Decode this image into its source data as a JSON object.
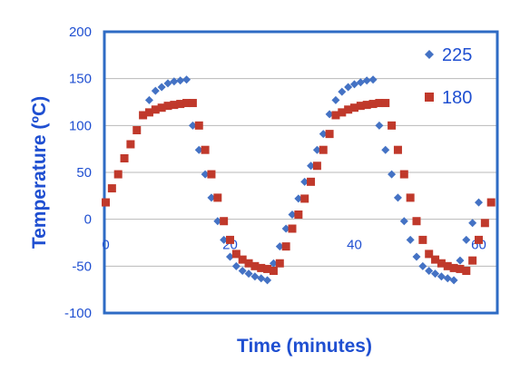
{
  "chart_data": {
    "type": "scatter",
    "title": "",
    "xlabel": "Time (minutes)",
    "ylabel": "Temperature (ºC)",
    "xlim": [
      0,
      63
    ],
    "ylim": [
      -100,
      200
    ],
    "x_ticks": [
      0,
      20,
      40,
      60
    ],
    "y_ticks": [
      -100,
      -50,
      0,
      50,
      100,
      150,
      200
    ],
    "x_tick_labels": [
      "0",
      "20",
      "40",
      "60"
    ],
    "y_tick_labels": [
      "-100",
      "-50",
      "0",
      "50",
      "100",
      "150",
      "200"
    ],
    "grid": "horizontal",
    "legend_position": "top-right",
    "colors": {
      "axis_text": "#1f4fd1",
      "frame": "#2e6bc4",
      "gridline": "#b9b9b9"
    },
    "series": [
      {
        "name": "225",
        "marker": "diamond",
        "color": "#4472c4",
        "points": [
          [
            0,
            18
          ],
          [
            1,
            33
          ],
          [
            2,
            48
          ],
          [
            3,
            65
          ],
          [
            4,
            80
          ],
          [
            5,
            95
          ],
          [
            6,
            111
          ],
          [
            7,
            127
          ],
          [
            8,
            137
          ],
          [
            9,
            141
          ],
          [
            10,
            145
          ],
          [
            11,
            147
          ],
          [
            12,
            148
          ],
          [
            13,
            149
          ],
          [
            14,
            100
          ],
          [
            15,
            74
          ],
          [
            16,
            48
          ],
          [
            17,
            23
          ],
          [
            18,
            -2
          ],
          [
            19,
            -22
          ],
          [
            20,
            -40
          ],
          [
            21,
            -50
          ],
          [
            22,
            -55
          ],
          [
            23,
            -58
          ],
          [
            24,
            -61
          ],
          [
            25,
            -63
          ],
          [
            26,
            -65
          ],
          [
            27,
            -47
          ],
          [
            28,
            -29
          ],
          [
            29,
            -10
          ],
          [
            30,
            5
          ],
          [
            31,
            22
          ],
          [
            32,
            40
          ],
          [
            33,
            57
          ],
          [
            34,
            74
          ],
          [
            35,
            91
          ],
          [
            36,
            112
          ],
          [
            37,
            127
          ],
          [
            38,
            136
          ],
          [
            39,
            141
          ],
          [
            40,
            144
          ],
          [
            41,
            146
          ],
          [
            42,
            148
          ],
          [
            43,
            149
          ],
          [
            44,
            100
          ],
          [
            45,
            74
          ],
          [
            46,
            48
          ],
          [
            47,
            23
          ],
          [
            48,
            -2
          ],
          [
            49,
            -22
          ],
          [
            50,
            -40
          ],
          [
            51,
            -50
          ],
          [
            52,
            -55
          ],
          [
            53,
            -58
          ],
          [
            54,
            -61
          ],
          [
            55,
            -63
          ],
          [
            56,
            -65
          ],
          [
            57,
            -44
          ],
          [
            58,
            -22
          ],
          [
            59,
            -4
          ],
          [
            60,
            18
          ]
        ]
      },
      {
        "name": "180",
        "marker": "square",
        "color": "#c0392b",
        "points": [
          [
            0,
            18
          ],
          [
            1,
            33
          ],
          [
            2,
            48
          ],
          [
            3,
            65
          ],
          [
            4,
            80
          ],
          [
            5,
            95
          ],
          [
            6,
            111
          ],
          [
            7,
            114
          ],
          [
            8,
            117
          ],
          [
            9,
            119
          ],
          [
            10,
            121
          ],
          [
            11,
            122
          ],
          [
            12,
            123
          ],
          [
            13,
            124
          ],
          [
            14,
            124
          ],
          [
            15,
            100
          ],
          [
            16,
            74
          ],
          [
            17,
            48
          ],
          [
            18,
            23
          ],
          [
            19,
            -2
          ],
          [
            20,
            -22
          ],
          [
            21,
            -37
          ],
          [
            22,
            -43
          ],
          [
            23,
            -47
          ],
          [
            24,
            -50
          ],
          [
            25,
            -52
          ],
          [
            26,
            -53
          ],
          [
            27,
            -55
          ],
          [
            28,
            -47
          ],
          [
            29,
            -29
          ],
          [
            30,
            -10
          ],
          [
            31,
            5
          ],
          [
            32,
            22
          ],
          [
            33,
            40
          ],
          [
            34,
            57
          ],
          [
            35,
            74
          ],
          [
            36,
            91
          ],
          [
            37,
            111
          ],
          [
            38,
            114
          ],
          [
            39,
            117
          ],
          [
            40,
            119
          ],
          [
            41,
            121
          ],
          [
            42,
            122
          ],
          [
            43,
            123
          ],
          [
            44,
            124
          ],
          [
            45,
            124
          ],
          [
            46,
            100
          ],
          [
            47,
            74
          ],
          [
            48,
            48
          ],
          [
            49,
            23
          ],
          [
            50,
            -2
          ],
          [
            51,
            -22
          ],
          [
            52,
            -37
          ],
          [
            53,
            -43
          ],
          [
            54,
            -47
          ],
          [
            55,
            -50
          ],
          [
            56,
            -52
          ],
          [
            57,
            -53
          ],
          [
            58,
            -55
          ],
          [
            59,
            -44
          ],
          [
            60,
            -22
          ],
          [
            61,
            -4
          ],
          [
            62,
            18
          ]
        ]
      }
    ]
  }
}
